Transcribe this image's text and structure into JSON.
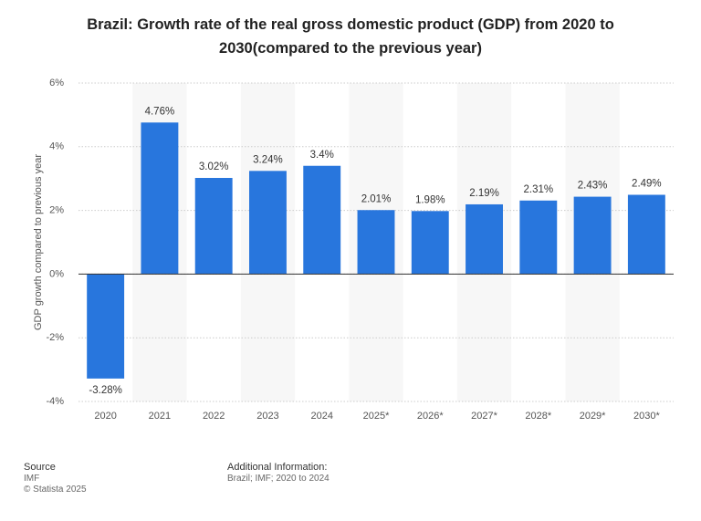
{
  "chart_data": {
    "type": "bar",
    "title": "Brazil: Growth rate of the real gross domestic product (GDP) from 2020 to 2030(compared to the previous year)",
    "y_label": "GDP growth compared to previous year",
    "categories": [
      "2020",
      "2021",
      "2022",
      "2023",
      "2024",
      "2025*",
      "2026*",
      "2027*",
      "2028*",
      "2029*",
      "2030*"
    ],
    "values": [
      -3.28,
      4.76,
      3.02,
      3.24,
      3.4,
      2.01,
      1.98,
      2.19,
      2.31,
      2.43,
      2.49
    ],
    "value_labels": [
      "-3.28%",
      "4.76%",
      "3.02%",
      "3.24%",
      "3.4%",
      "2.01%",
      "1.98%",
      "2.19%",
      "2.31%",
      "2.43%",
      "2.49%"
    ],
    "color": "#2876dd",
    "ylim": [
      -4,
      6
    ],
    "yticks": [
      {
        "value": -4,
        "label": "-4%"
      },
      {
        "value": -2,
        "label": "-2%"
      },
      {
        "value": 0,
        "label": "0%"
      },
      {
        "value": 2,
        "label": "2%"
      },
      {
        "value": 4,
        "label": "4%"
      },
      {
        "value": 6,
        "label": "6%"
      }
    ],
    "grid": true
  },
  "footer": {
    "source_title": "Source",
    "source": "IMF",
    "copyright": "© Statista 2025",
    "info_title": "Additional Information:",
    "info": "Brazil; IMF; 2020 to 2024"
  }
}
